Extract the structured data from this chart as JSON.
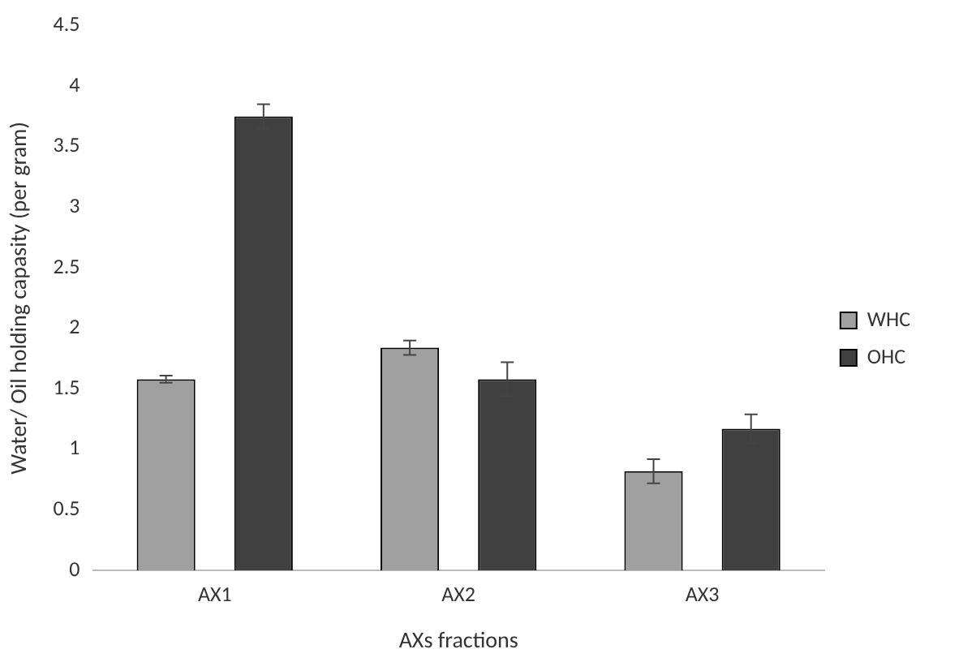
{
  "chart_data": {
    "type": "bar",
    "xlabel": "AXs fractions",
    "ylabel": "Water/ Oil holding capasity (per gram)",
    "categories": [
      "AX1",
      "AX2",
      "AX3"
    ],
    "series": [
      {
        "name": "WHC",
        "color": "#a0a0a0",
        "values": [
          1.58,
          1.84,
          0.82
        ],
        "errors": [
          0.03,
          0.06,
          0.1
        ]
      },
      {
        "name": "OHC",
        "color": "#404040",
        "values": [
          3.75,
          1.58,
          1.17
        ],
        "errors": [
          0.1,
          0.14,
          0.12
        ]
      }
    ],
    "ylim": [
      0,
      4.5
    ],
    "yticks": [
      0,
      0.5,
      1,
      1.5,
      2,
      2.5,
      3,
      3.5,
      4,
      4.5
    ],
    "grid": false,
    "legend": "right"
  }
}
